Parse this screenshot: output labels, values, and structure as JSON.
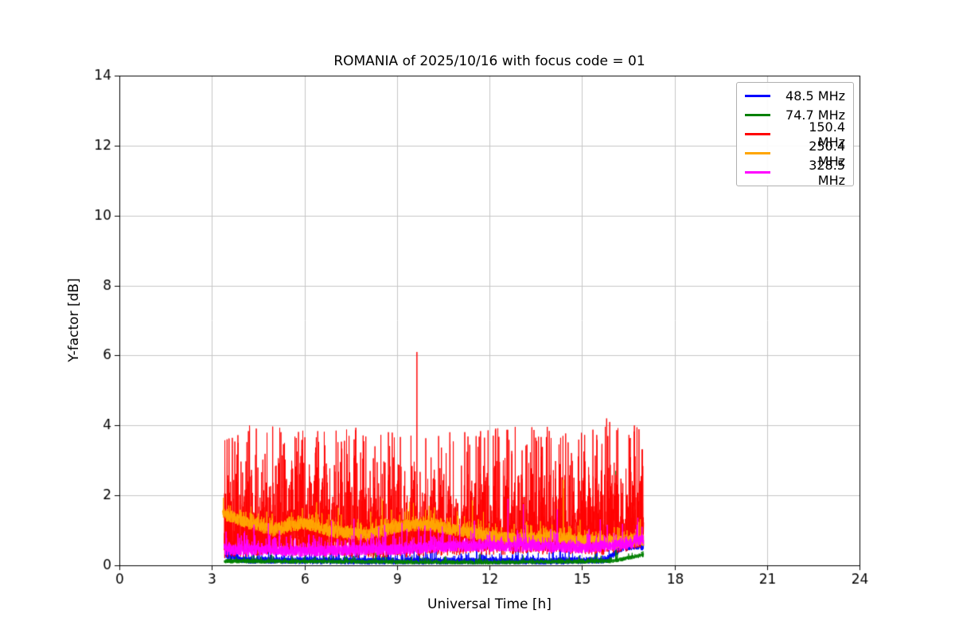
{
  "chart_data": {
    "type": "line",
    "title": "ROMANIA of 2025/10/16 with focus code = 01",
    "xlabel": "Universal Time [h]",
    "ylabel": "Y-factor [dB]",
    "xlim": [
      0,
      24
    ],
    "ylim": [
      0,
      14
    ],
    "xticks": [
      0,
      3,
      6,
      9,
      12,
      15,
      18,
      21,
      24
    ],
    "yticks": [
      0,
      2,
      4,
      6,
      8,
      10,
      12,
      14
    ],
    "grid": true,
    "grid_color": "#c6c6c6",
    "axis_color": "#000000",
    "legend_position": "upper right",
    "time_coverage_hours": [
      3.4,
      17.0
    ],
    "series": [
      {
        "name": "48.5 MHz",
        "color": "#0000ff",
        "seed": 11,
        "t_start": 3.42,
        "t_end": 17.0,
        "step": 0.004,
        "base": [
          [
            3.42,
            0.3
          ],
          [
            4.0,
            0.15
          ],
          [
            8.0,
            0.12
          ],
          [
            14.0,
            0.12
          ],
          [
            15.8,
            0.15
          ],
          [
            16.3,
            0.5
          ],
          [
            16.8,
            0.55
          ],
          [
            17.0,
            0.5
          ]
        ],
        "jitter": 0.1,
        "tail": 0.1,
        "tail_prob": 0.15,
        "cap": 1.0,
        "events": []
      },
      {
        "name": "74.7 MHz",
        "color": "#008000",
        "seed": 22,
        "t_start": 3.4,
        "t_end": 17.0,
        "step": 0.004,
        "base": [
          [
            3.4,
            0.12
          ],
          [
            8.0,
            0.1
          ],
          [
            12.0,
            0.08
          ],
          [
            16.0,
            0.12
          ],
          [
            17.0,
            0.3
          ]
        ],
        "jitter": 0.06,
        "tail": 0.05,
        "tail_prob": 0.1,
        "cap": 1.0,
        "events": [
          [
            16.1,
            2.7
          ],
          [
            16.148,
            2.3
          ]
        ]
      },
      {
        "name": "150.4 MHz",
        "color": "#ff0000",
        "seed": 33,
        "t_start": 3.4,
        "t_end": 17.0,
        "step": 0.004,
        "base": [
          [
            3.4,
            0.5
          ],
          [
            5.0,
            0.6
          ],
          [
            8.0,
            0.5
          ],
          [
            12.0,
            0.6
          ],
          [
            16.0,
            0.6
          ],
          [
            17.0,
            0.8
          ]
        ],
        "jitter": 0.3,
        "tail": 0.85,
        "tail_prob": 0.65,
        "cap": 4.0,
        "events": [
          [
            9.648,
            6.1
          ],
          [
            5.948,
            3.85
          ],
          [
            7.448,
            3.7
          ],
          [
            13.5,
            3.65
          ],
          [
            15.8,
            4.2
          ],
          [
            15.9,
            4.1
          ],
          [
            16.7,
            4.0
          ],
          [
            16.852,
            3.75
          ]
        ]
      },
      {
        "name": "250.4 MHz",
        "color": "#ffa500",
        "seed": 44,
        "t_start": 3.35,
        "t_end": 17.0,
        "step": 0.004,
        "base": [
          [
            3.35,
            1.45
          ],
          [
            4.2,
            1.2
          ],
          [
            5.0,
            1.0
          ],
          [
            6.0,
            1.2
          ],
          [
            7.0,
            0.95
          ],
          [
            8.0,
            0.85
          ],
          [
            9.0,
            1.1
          ],
          [
            10.0,
            1.15
          ],
          [
            11.0,
            1.0
          ],
          [
            12.0,
            0.8
          ],
          [
            13.0,
            0.75
          ],
          [
            14.0,
            0.8
          ],
          [
            15.0,
            0.7
          ],
          [
            16.0,
            0.65
          ],
          [
            17.0,
            0.7
          ]
        ],
        "jitter": 0.18,
        "tail": 0.12,
        "tail_prob": 0.3,
        "cap": 2.2,
        "events": [
          [
            14.398,
            2.45
          ]
        ]
      },
      {
        "name": "328.5 MHz",
        "color": "#ff00ff",
        "seed": 55,
        "t_start": 3.4,
        "t_end": 17.0,
        "step": 0.004,
        "base": [
          [
            3.4,
            0.45
          ],
          [
            6.0,
            0.4
          ],
          [
            9.0,
            0.45
          ],
          [
            11.0,
            0.55
          ],
          [
            13.0,
            0.55
          ],
          [
            15.0,
            0.5
          ],
          [
            16.5,
            0.6
          ],
          [
            17.0,
            0.75
          ]
        ],
        "jitter": 0.16,
        "tail": 0.15,
        "tail_prob": 0.2,
        "cap": 2.0,
        "events": [
          [
            12.6,
            1.9
          ],
          [
            13.1,
            1.75
          ],
          [
            14.2,
            1.6
          ]
        ]
      }
    ]
  }
}
